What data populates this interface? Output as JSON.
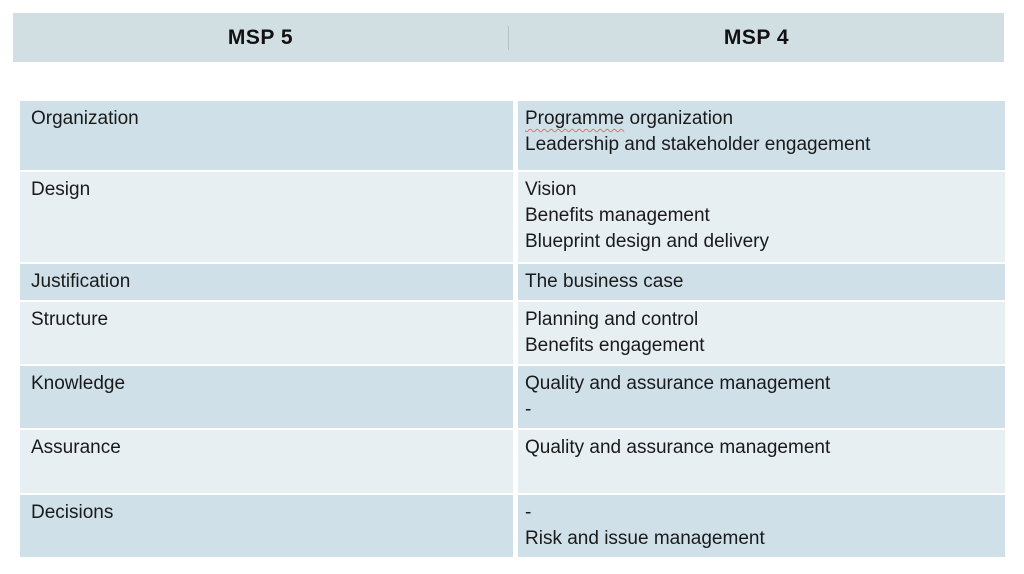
{
  "table": {
    "header": {
      "col1": "MSP 5",
      "col2": "MSP 4"
    },
    "rows": [
      {
        "msp5": "Organization",
        "msp4_lines": [
          "Programme organization",
          "Leadership and stakeholder engagement"
        ]
      },
      {
        "msp5": "Design",
        "msp4_lines": [
          "Vision",
          "Benefits management",
          "Blueprint design and delivery"
        ]
      },
      {
        "msp5": "Justification",
        "msp4_lines": [
          "The business case"
        ]
      },
      {
        "msp5": "Structure",
        "msp4_lines": [
          "Planning and control",
          "Benefits engagement"
        ]
      },
      {
        "msp5": "Knowledge",
        "msp4_lines": [
          "Quality and assurance management",
          "-"
        ]
      },
      {
        "msp5": "Assurance",
        "msp4_lines": [
          "Quality and assurance management"
        ]
      },
      {
        "msp5": "Decisions",
        "msp4_lines": [
          "-",
          "Risk and issue management"
        ]
      }
    ],
    "spellcheck": {
      "row": 0,
      "line": 0,
      "word": "Programme"
    }
  },
  "colors": {
    "header_bg": "#d2dfe2",
    "row_dark": "#cfe0e9",
    "row_light": "#e7eff3",
    "text": "#1a1a1a",
    "spellcheck_underline": "#d9766a",
    "background": "#ffffff"
  }
}
